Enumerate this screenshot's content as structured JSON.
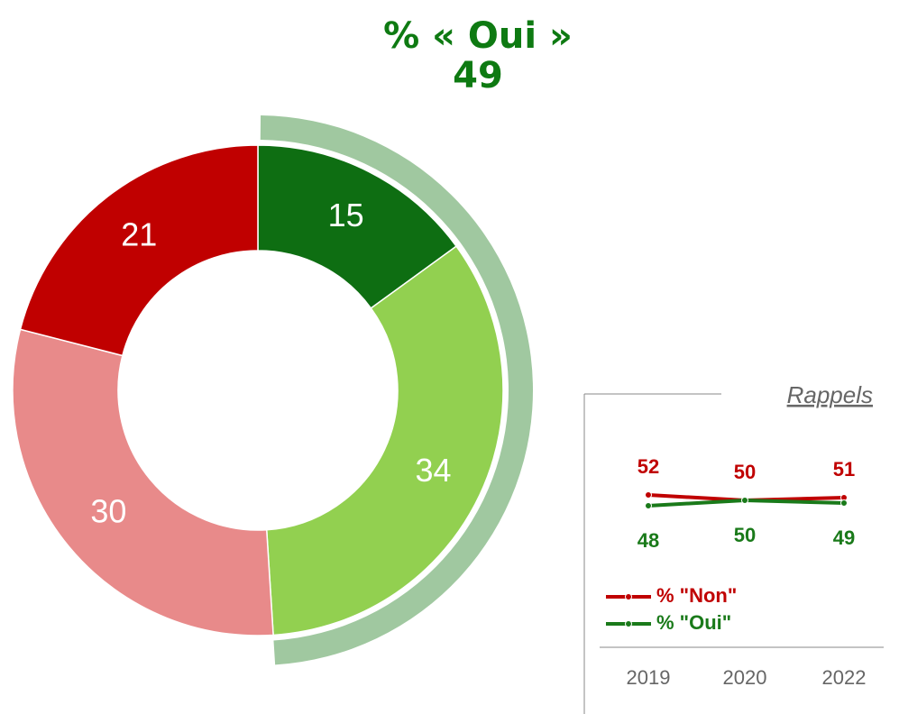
{
  "chart_data": [
    {
      "type": "donut",
      "title": "% « Oui »",
      "headline": 49,
      "categories": [
        null,
        null,
        null,
        null
      ],
      "values": [
        15,
        34,
        30,
        21
      ],
      "colors": [
        "#0e6e12",
        "#92d050",
        "#e88a8a",
        "#c00000"
      ],
      "highlight_color": "#a0c8a0"
    },
    {
      "type": "line",
      "title": "Rappels",
      "categories": [
        "2019",
        "2020",
        "2022"
      ],
      "series": [
        {
          "name": "% \"Non\"",
          "color": "#c00000",
          "values": [
            52,
            50,
            51
          ]
        },
        {
          "name": "% \"Oui\"",
          "color": "#1a7a1a",
          "values": [
            48,
            50,
            49
          ]
        }
      ],
      "ylim": [
        0,
        100
      ]
    }
  ]
}
